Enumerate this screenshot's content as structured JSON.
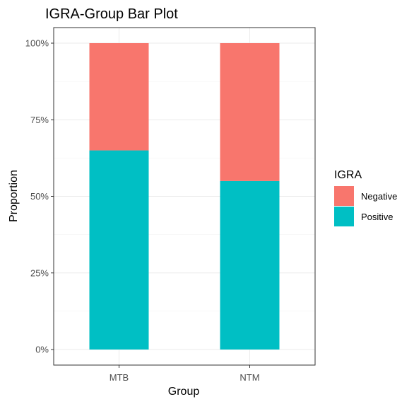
{
  "chart_data": {
    "type": "bar",
    "stacked": true,
    "title": "IGRA-Group Bar Plot",
    "xlabel": "Group",
    "ylabel": "Proportion",
    "categories": [
      "MTB",
      "NTM"
    ],
    "series": [
      {
        "name": "Positive",
        "values": [
          0.65,
          0.55
        ],
        "color": "#00BFC4"
      },
      {
        "name": "Negative",
        "values": [
          0.35,
          0.45
        ],
        "color": "#F8766D"
      }
    ],
    "ylim": [
      0,
      1
    ],
    "yticks": [
      0,
      0.25,
      0.5,
      0.75,
      1
    ],
    "ytick_labels": [
      "0%",
      "25%",
      "50%",
      "75%",
      "100%"
    ],
    "grid": true,
    "legend": {
      "title": "IGRA",
      "placement": "right",
      "entries": [
        {
          "label": "Negative",
          "color": "#F8766D"
        },
        {
          "label": "Positive",
          "color": "#00BFC4"
        }
      ]
    }
  }
}
